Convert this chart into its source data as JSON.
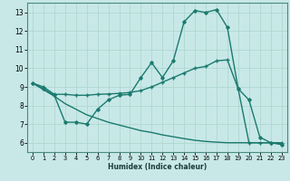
{
  "xlabel": "Humidex (Indice chaleur)",
  "background_color": "#c8e8e8",
  "grid_color": "#b0d8d0",
  "line_color": "#1a7a6e",
  "border_color": "#4a8a80",
  "xlim": [
    -0.5,
    23.5
  ],
  "ylim": [
    5.5,
    13.5
  ],
  "xticks": [
    0,
    1,
    2,
    3,
    4,
    5,
    6,
    7,
    8,
    9,
    10,
    11,
    12,
    13,
    14,
    15,
    16,
    17,
    18,
    19,
    20,
    21,
    22,
    23
  ],
  "yticks": [
    6,
    7,
    8,
    9,
    10,
    11,
    12,
    13
  ],
  "curve1_x": [
    0,
    1,
    2,
    3,
    4,
    5,
    6,
    7,
    8,
    9,
    10,
    11,
    12,
    13,
    14,
    15,
    16,
    17,
    18,
    19,
    20,
    21,
    22,
    23
  ],
  "curve1_y": [
    9.2,
    8.9,
    8.55,
    7.1,
    7.1,
    7.0,
    7.8,
    8.3,
    8.55,
    8.6,
    9.5,
    10.3,
    9.5,
    10.4,
    12.5,
    13.1,
    13.0,
    13.15,
    12.2,
    8.9,
    8.3,
    6.3,
    6.0,
    5.9
  ],
  "curve2_x": [
    0,
    1,
    2,
    3,
    4,
    5,
    6,
    7,
    8,
    9,
    10,
    11,
    12,
    13,
    14,
    15,
    16,
    17,
    18,
    19,
    20,
    21,
    22,
    23
  ],
  "curve2_y": [
    9.2,
    9.0,
    8.6,
    8.6,
    8.55,
    8.55,
    8.6,
    8.62,
    8.65,
    8.7,
    8.8,
    9.0,
    9.25,
    9.5,
    9.75,
    10.0,
    10.1,
    10.4,
    10.45,
    8.9,
    6.0,
    6.0,
    6.0,
    6.0
  ],
  "curve3_x": [
    0,
    1,
    2,
    3,
    4,
    5,
    6,
    7,
    8,
    9,
    10,
    11,
    12,
    13,
    14,
    15,
    16,
    17,
    18,
    19,
    20,
    21,
    22,
    23
  ],
  "curve3_y": [
    9.2,
    8.85,
    8.5,
    8.1,
    7.8,
    7.5,
    7.3,
    7.1,
    6.95,
    6.8,
    6.65,
    6.55,
    6.42,
    6.32,
    6.22,
    6.13,
    6.07,
    6.03,
    6.0,
    6.0,
    6.0,
    6.0,
    6.0,
    5.95
  ]
}
